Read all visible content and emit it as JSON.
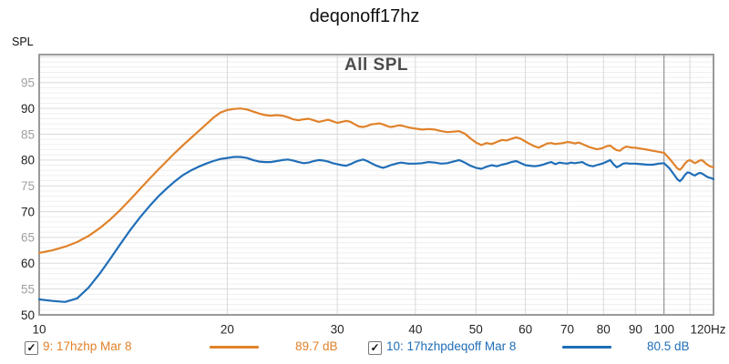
{
  "window": {
    "title": "deqonoff17hz"
  },
  "chart_data": {
    "type": "line",
    "title": "deqonoff17hz",
    "overlay_label": "All SPL",
    "y_axis_name": "SPL",
    "x_unit": "Hz",
    "x_scale": "log",
    "xlim": [
      10,
      120
    ],
    "ylim": [
      50,
      100.4
    ],
    "grid": true,
    "legend_position": "bottom",
    "y_ticks": [
      50,
      55,
      60,
      65,
      70,
      75,
      80,
      85,
      90,
      95
    ],
    "x_ticks": [
      {
        "f": 10,
        "label": "10"
      },
      {
        "f": 20,
        "label": "20"
      },
      {
        "f": 30,
        "label": "30"
      },
      {
        "f": 40,
        "label": "40"
      },
      {
        "f": 50,
        "label": "50"
      },
      {
        "f": 60,
        "label": "60"
      },
      {
        "f": 70,
        "label": "70"
      },
      {
        "f": 80,
        "label": "80"
      },
      {
        "f": 90,
        "label": "90"
      },
      {
        "f": 100,
        "label": "100"
      },
      {
        "f": 120,
        "label": "120Hz"
      }
    ],
    "series": [
      {
        "name": "9: 17hzhp Mar 8",
        "color": "#e0822a",
        "level_label": "89.7 dB",
        "checked": true,
        "points": [
          [
            10,
            62.0
          ],
          [
            10.5,
            62.5
          ],
          [
            11,
            63.2
          ],
          [
            11.5,
            64.1
          ],
          [
            12,
            65.3
          ],
          [
            12.5,
            66.8
          ],
          [
            13,
            68.5
          ],
          [
            13.5,
            70.4
          ],
          [
            14,
            72.4
          ],
          [
            14.5,
            74.4
          ],
          [
            15,
            76.3
          ],
          [
            15.5,
            78.1
          ],
          [
            16,
            79.8
          ],
          [
            16.5,
            81.4
          ],
          [
            17,
            82.9
          ],
          [
            17.5,
            84.3
          ],
          [
            18,
            85.6
          ],
          [
            18.5,
            86.9
          ],
          [
            19,
            88.2
          ],
          [
            19.5,
            89.2
          ],
          [
            20,
            89.7
          ],
          [
            20.5,
            89.9
          ],
          [
            21,
            90.0
          ],
          [
            21.5,
            89.8
          ],
          [
            22,
            89.4
          ],
          [
            22.5,
            89.0
          ],
          [
            23,
            88.7
          ],
          [
            23.5,
            88.6
          ],
          [
            24,
            88.7
          ],
          [
            24.5,
            88.6
          ],
          [
            25,
            88.3
          ],
          [
            25.5,
            87.9
          ],
          [
            26,
            87.7
          ],
          [
            26.5,
            87.9
          ],
          [
            27,
            88.0
          ],
          [
            27.5,
            87.7
          ],
          [
            28,
            87.4
          ],
          [
            28.5,
            87.6
          ],
          [
            29,
            87.8
          ],
          [
            29.5,
            87.5
          ],
          [
            30,
            87.2
          ],
          [
            30.5,
            87.4
          ],
          [
            31,
            87.6
          ],
          [
            31.5,
            87.4
          ],
          [
            32,
            86.9
          ],
          [
            32.5,
            86.5
          ],
          [
            33,
            86.4
          ],
          [
            33.5,
            86.6
          ],
          [
            34,
            86.9
          ],
          [
            34.5,
            87.0
          ],
          [
            35,
            87.1
          ],
          [
            35.5,
            86.9
          ],
          [
            36,
            86.6
          ],
          [
            36.5,
            86.4
          ],
          [
            37,
            86.5
          ],
          [
            37.5,
            86.7
          ],
          [
            38,
            86.7
          ],
          [
            38.5,
            86.5
          ],
          [
            39,
            86.3
          ],
          [
            39.5,
            86.2
          ],
          [
            40,
            86.1
          ],
          [
            41,
            85.9
          ],
          [
            42,
            86.0
          ],
          [
            43,
            85.9
          ],
          [
            44,
            85.6
          ],
          [
            45,
            85.4
          ],
          [
            46,
            85.5
          ],
          [
            47,
            85.6
          ],
          [
            48,
            85.1
          ],
          [
            49,
            84.2
          ],
          [
            50,
            83.4
          ],
          [
            51,
            82.9
          ],
          [
            52,
            83.3
          ],
          [
            53,
            83.1
          ],
          [
            54,
            83.5
          ],
          [
            55,
            83.9
          ],
          [
            56,
            83.8
          ],
          [
            57,
            84.1
          ],
          [
            58,
            84.4
          ],
          [
            59,
            84.1
          ],
          [
            60,
            83.6
          ],
          [
            61,
            83.1
          ],
          [
            62,
            82.7
          ],
          [
            63,
            82.4
          ],
          [
            64,
            82.8
          ],
          [
            65,
            83.2
          ],
          [
            66,
            83.3
          ],
          [
            67,
            83.1
          ],
          [
            68,
            83.2
          ],
          [
            69,
            83.3
          ],
          [
            70,
            83.5
          ],
          [
            71,
            83.4
          ],
          [
            72,
            83.2
          ],
          [
            73,
            83.4
          ],
          [
            74,
            83.1
          ],
          [
            75,
            82.8
          ],
          [
            76,
            82.5
          ],
          [
            77,
            82.3
          ],
          [
            78,
            82.1
          ],
          [
            79,
            82.2
          ],
          [
            80,
            82.4
          ],
          [
            81,
            82.7
          ],
          [
            82,
            82.8
          ],
          [
            83,
            82.3
          ],
          [
            84,
            81.9
          ],
          [
            85,
            81.8
          ],
          [
            86,
            82.3
          ],
          [
            87,
            82.6
          ],
          [
            88,
            82.5
          ],
          [
            89,
            82.4
          ],
          [
            90,
            82.4
          ],
          [
            92,
            82.2
          ],
          [
            94,
            82.0
          ],
          [
            96,
            81.8
          ],
          [
            98,
            81.6
          ],
          [
            100,
            81.4
          ],
          [
            102,
            80.3
          ],
          [
            104,
            79.0
          ],
          [
            105,
            78.4
          ],
          [
            106,
            78.1
          ],
          [
            107,
            78.6
          ],
          [
            108,
            79.3
          ],
          [
            109,
            79.8
          ],
          [
            110,
            80.0
          ],
          [
            111,
            79.7
          ],
          [
            112,
            79.4
          ],
          [
            113,
            79.6
          ],
          [
            114,
            79.9
          ],
          [
            115,
            80.0
          ],
          [
            116,
            79.6
          ],
          [
            117,
            79.2
          ],
          [
            118,
            78.9
          ],
          [
            119,
            78.7
          ],
          [
            120,
            78.6
          ]
        ]
      },
      {
        "name": "10: 17hzhpdeqoff Mar 8",
        "color": "#206eb7",
        "level_label": "80.5 dB",
        "checked": true,
        "points": [
          [
            10,
            53.0
          ],
          [
            10.5,
            52.7
          ],
          [
            11,
            52.5
          ],
          [
            11.5,
            53.2
          ],
          [
            12,
            55.3
          ],
          [
            12.5,
            58.0
          ],
          [
            13,
            60.9
          ],
          [
            13.5,
            63.8
          ],
          [
            14,
            66.5
          ],
          [
            14.5,
            68.9
          ],
          [
            15,
            71.0
          ],
          [
            15.5,
            72.9
          ],
          [
            16,
            74.5
          ],
          [
            16.5,
            75.9
          ],
          [
            17,
            77.1
          ],
          [
            17.5,
            78.0
          ],
          [
            18,
            78.7
          ],
          [
            18.5,
            79.3
          ],
          [
            19,
            79.8
          ],
          [
            19.5,
            80.2
          ],
          [
            20,
            80.4
          ],
          [
            20.5,
            80.6
          ],
          [
            21,
            80.6
          ],
          [
            21.5,
            80.4
          ],
          [
            22,
            80.0
          ],
          [
            22.5,
            79.7
          ],
          [
            23,
            79.6
          ],
          [
            23.5,
            79.6
          ],
          [
            24,
            79.8
          ],
          [
            24.5,
            80.0
          ],
          [
            25,
            80.1
          ],
          [
            25.5,
            79.9
          ],
          [
            26,
            79.6
          ],
          [
            26.5,
            79.4
          ],
          [
            27,
            79.5
          ],
          [
            27.5,
            79.8
          ],
          [
            28,
            80.0
          ],
          [
            28.5,
            79.9
          ],
          [
            29,
            79.7
          ],
          [
            29.5,
            79.4
          ],
          [
            30,
            79.2
          ],
          [
            30.5,
            79.0
          ],
          [
            31,
            78.9
          ],
          [
            31.5,
            79.2
          ],
          [
            32,
            79.6
          ],
          [
            32.5,
            79.9
          ],
          [
            33,
            80.1
          ],
          [
            33.5,
            79.8
          ],
          [
            34,
            79.4
          ],
          [
            34.5,
            79.0
          ],
          [
            35,
            78.7
          ],
          [
            35.5,
            78.5
          ],
          [
            36,
            78.7
          ],
          [
            36.5,
            79.0
          ],
          [
            37,
            79.2
          ],
          [
            37.5,
            79.4
          ],
          [
            38,
            79.5
          ],
          [
            38.5,
            79.4
          ],
          [
            39,
            79.3
          ],
          [
            39.5,
            79.3
          ],
          [
            40,
            79.3
          ],
          [
            41,
            79.4
          ],
          [
            42,
            79.6
          ],
          [
            43,
            79.5
          ],
          [
            44,
            79.3
          ],
          [
            45,
            79.4
          ],
          [
            46,
            79.7
          ],
          [
            47,
            80.0
          ],
          [
            48,
            79.5
          ],
          [
            49,
            78.9
          ],
          [
            50,
            78.5
          ],
          [
            51,
            78.3
          ],
          [
            52,
            78.7
          ],
          [
            53,
            79.0
          ],
          [
            54,
            78.8
          ],
          [
            55,
            79.1
          ],
          [
            56,
            79.3
          ],
          [
            57,
            79.6
          ],
          [
            58,
            79.8
          ],
          [
            59,
            79.4
          ],
          [
            60,
            79.0
          ],
          [
            61,
            78.9
          ],
          [
            62,
            78.8
          ],
          [
            63,
            78.9
          ],
          [
            64,
            79.1
          ],
          [
            65,
            79.4
          ],
          [
            66,
            79.6
          ],
          [
            67,
            79.2
          ],
          [
            68,
            79.5
          ],
          [
            69,
            79.4
          ],
          [
            70,
            79.3
          ],
          [
            71,
            79.5
          ],
          [
            72,
            79.4
          ],
          [
            73,
            79.5
          ],
          [
            74,
            79.6
          ],
          [
            75,
            79.2
          ],
          [
            76,
            78.9
          ],
          [
            77,
            78.8
          ],
          [
            78,
            79.0
          ],
          [
            79,
            79.2
          ],
          [
            80,
            79.4
          ],
          [
            81,
            79.7
          ],
          [
            82,
            80.0
          ],
          [
            83,
            79.2
          ],
          [
            84,
            78.6
          ],
          [
            85,
            78.9
          ],
          [
            86,
            79.3
          ],
          [
            87,
            79.4
          ],
          [
            88,
            79.3
          ],
          [
            89,
            79.3
          ],
          [
            90,
            79.3
          ],
          [
            92,
            79.2
          ],
          [
            94,
            79.1
          ],
          [
            96,
            79.1
          ],
          [
            98,
            79.3
          ],
          [
            100,
            79.4
          ],
          [
            102,
            78.4
          ],
          [
            104,
            77.0
          ],
          [
            105,
            76.3
          ],
          [
            106,
            75.9
          ],
          [
            107,
            76.4
          ],
          [
            108,
            77.1
          ],
          [
            109,
            77.6
          ],
          [
            110,
            77.5
          ],
          [
            111,
            77.2
          ],
          [
            112,
            77.0
          ],
          [
            113,
            77.3
          ],
          [
            114,
            77.5
          ],
          [
            115,
            77.4
          ],
          [
            116,
            77.1
          ],
          [
            117,
            76.8
          ],
          [
            118,
            76.6
          ],
          [
            119,
            76.5
          ],
          [
            120,
            76.3
          ]
        ]
      }
    ]
  }
}
